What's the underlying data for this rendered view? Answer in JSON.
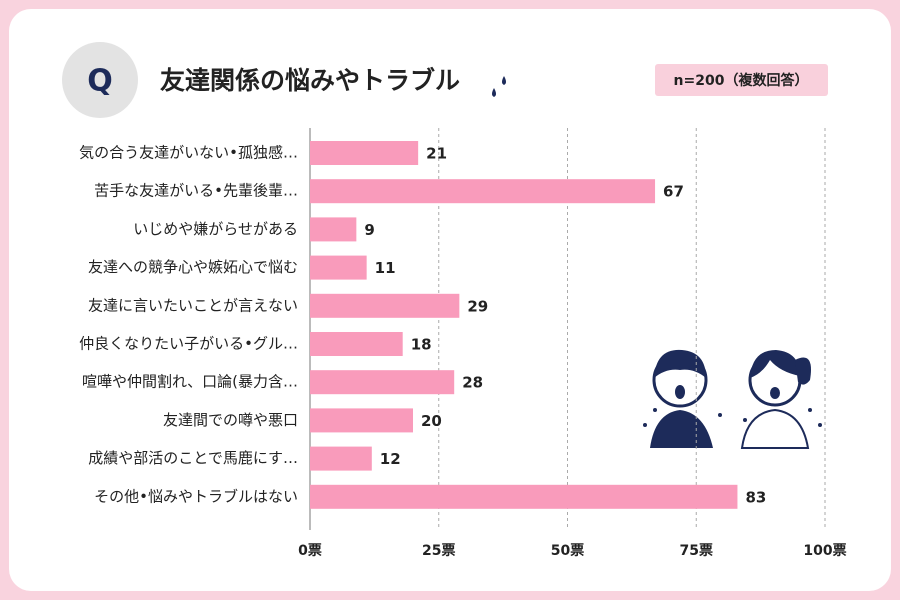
{
  "chart_data": {
    "type": "bar",
    "orientation": "horizontal",
    "badge": "Q",
    "title": "友達関係の悩みやトラブル",
    "note": "n=200（複数回答）",
    "categories": [
      "気の合う友達がいない•孤独感…",
      "苦手な友達がいる•先輩後輩…",
      "いじめや嫌がらせがある",
      "友達への競争心や嫉妬心で悩む",
      "友達に言いたいことが言えない",
      "仲良くなりたい子がいる•グル…",
      "喧嘩や仲間割れ、口論(暴力含…",
      "友達間での噂や悪口",
      "成績や部活のことで馬鹿にす…",
      "その他•悩みやトラブルはない"
    ],
    "values": [
      21,
      67,
      9,
      11,
      29,
      18,
      28,
      20,
      12,
      83
    ],
    "color": "#f99bbb",
    "xlim": [
      0,
      100
    ],
    "xticks": [
      {
        "value": 0,
        "label": "0票"
      },
      {
        "value": 25,
        "label": "25票"
      },
      {
        "value": 50,
        "label": "50票"
      },
      {
        "value": 75,
        "label": "75票"
      },
      {
        "value": 100,
        "label": "100票"
      }
    ],
    "grid": true
  }
}
